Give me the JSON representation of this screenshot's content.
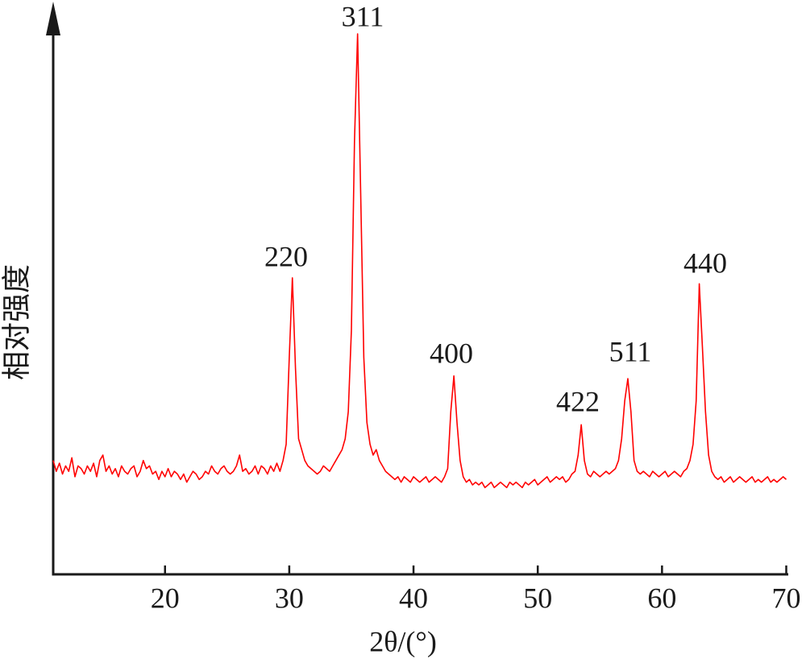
{
  "chart_data": {
    "type": "line",
    "xlabel": "2θ/(°)",
    "ylabel": "相对强度",
    "color": "#ff0000",
    "xlim": [
      11,
      70
    ],
    "ylim": [
      0,
      100
    ],
    "xticks": [
      20,
      30,
      40,
      50,
      60,
      70
    ],
    "annotations": [
      "220",
      "311",
      "400",
      "422",
      "511",
      "440"
    ],
    "x": [
      11,
      11.25,
      11.5,
      11.75,
      12,
      12.25,
      12.5,
      12.75,
      13,
      13.25,
      13.5,
      13.75,
      14,
      14.25,
      14.5,
      14.75,
      15,
      15.25,
      15.5,
      15.75,
      16,
      16.25,
      16.5,
      16.75,
      17,
      17.25,
      17.5,
      17.75,
      18,
      18.25,
      18.5,
      18.75,
      19,
      19.25,
      19.5,
      19.75,
      20,
      20.25,
      20.5,
      20.75,
      21,
      21.25,
      21.5,
      21.75,
      22,
      22.25,
      22.5,
      22.75,
      23,
      23.25,
      23.5,
      23.75,
      24,
      24.25,
      24.5,
      24.75,
      25,
      25.25,
      25.5,
      25.75,
      26,
      26.25,
      26.5,
      26.75,
      27,
      27.25,
      27.5,
      27.75,
      28,
      28.25,
      28.5,
      28.75,
      29,
      29.25,
      29.5,
      29.75,
      30,
      30.25,
      30.5,
      30.75,
      31,
      31.25,
      31.5,
      31.75,
      32,
      32.25,
      32.5,
      32.75,
      33,
      33.25,
      33.5,
      33.75,
      34,
      34.25,
      34.5,
      34.75,
      35,
      35.25,
      35.5,
      35.75,
      36,
      36.25,
      36.5,
      36.75,
      37,
      37.25,
      37.5,
      37.75,
      38,
      38.25,
      38.5,
      38.75,
      39,
      39.25,
      39.5,
      39.75,
      40,
      40.25,
      40.5,
      40.75,
      41,
      41.25,
      41.5,
      41.75,
      42,
      42.25,
      42.5,
      42.75,
      43,
      43.25,
      43.5,
      43.75,
      44,
      44.25,
      44.5,
      44.75,
      45,
      45.25,
      45.5,
      45.75,
      46,
      46.25,
      46.5,
      46.75,
      47,
      47.25,
      47.5,
      47.75,
      48,
      48.25,
      48.5,
      48.75,
      49,
      49.25,
      49.5,
      49.75,
      50,
      50.25,
      50.5,
      50.75,
      51,
      51.25,
      51.5,
      51.75,
      52,
      52.25,
      52.5,
      52.75,
      53,
      53.25,
      53.5,
      53.75,
      54,
      54.25,
      54.5,
      54.75,
      55,
      55.25,
      55.5,
      55.75,
      56,
      56.25,
      56.5,
      56.75,
      57,
      57.25,
      57.5,
      57.75,
      58,
      58.25,
      58.5,
      58.75,
      59,
      59.25,
      59.5,
      59.75,
      60,
      60.25,
      60.5,
      60.75,
      61,
      61.25,
      61.5,
      61.75,
      62,
      62.25,
      62.5,
      62.75,
      63,
      63.25,
      63.5,
      63.75,
      64,
      64.25,
      64.5,
      64.75,
      65,
      65.25,
      65.5,
      65.75,
      66,
      66.25,
      66.5,
      66.75,
      67,
      67.25,
      67.5,
      67.75,
      68,
      68.25,
      68.5,
      68.75,
      69,
      69.25,
      69.5,
      69.75,
      70
    ],
    "values": [
      21,
      19,
      20.5,
      18.5,
      20,
      19,
      21.5,
      18,
      20,
      19.5,
      18.5,
      20,
      19,
      20.5,
      18,
      21,
      22,
      19,
      20,
      18.5,
      19.5,
      18,
      20,
      19,
      18.5,
      19.5,
      20,
      18,
      19,
      21,
      19.5,
      20,
      18.5,
      19,
      17.5,
      19,
      18,
      19.5,
      18,
      19,
      18.5,
      17.5,
      18.5,
      17,
      18,
      19,
      18.5,
      17.5,
      18,
      19,
      18.5,
      20,
      19,
      18.5,
      19.5,
      20,
      19,
      18.5,
      19,
      20,
      22,
      19,
      19.5,
      18.5,
      19,
      20,
      18.5,
      20,
      19.5,
      18.5,
      20,
      19,
      20.5,
      19,
      21,
      24,
      40,
      54.7,
      38,
      25,
      23,
      21,
      20,
      19.5,
      19,
      18.5,
      19,
      20,
      19.5,
      19,
      20,
      21,
      22,
      23,
      25,
      30,
      45,
      80,
      99.7,
      70,
      40,
      28,
      24,
      22,
      23,
      21,
      20,
      19,
      18.5,
      18,
      17.5,
      18,
      17,
      18,
      17.5,
      17,
      18,
      17.5,
      17,
      17.5,
      18,
      17,
      17.5,
      18,
      17.5,
      17,
      18,
      19.5,
      30,
      36.6,
      28,
      21,
      18,
      17,
      17.5,
      16.5,
      17,
      16.5,
      17,
      16,
      16.5,
      17,
      16,
      16.5,
      17,
      16.5,
      16,
      17,
      16.5,
      17,
      16.5,
      16,
      17,
      16.5,
      17,
      17.5,
      16.5,
      17,
      17.5,
      18,
      17,
      17.5,
      18,
      17.5,
      18,
      17,
      17.5,
      18.5,
      19,
      22,
      27.6,
      21,
      18.5,
      18,
      19,
      18.5,
      18,
      18.5,
      19,
      18.5,
      19,
      19.5,
      21,
      25,
      32,
      36.1,
      30,
      21,
      19,
      18.5,
      19,
      18.5,
      18,
      19,
      18.5,
      18,
      18.5,
      19,
      18,
      18.5,
      19,
      18.5,
      18,
      19,
      19.5,
      21,
      24,
      32,
      53.6,
      42,
      30,
      22,
      19,
      18,
      17.5,
      18,
      17,
      17.5,
      18,
      17,
      17.5,
      18,
      17.5,
      17,
      17.5,
      18,
      17,
      17.5,
      17,
      17.5,
      18,
      17,
      17.5,
      17,
      17.5,
      18,
      17.5
    ]
  }
}
